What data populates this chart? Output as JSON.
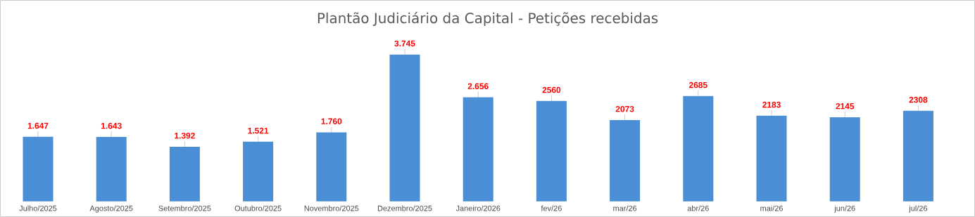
{
  "chart_data": {
    "type": "bar",
    "title": "Plantão Judiciário da Capital - Petições recebidas",
    "categories": [
      "Julho/2025",
      "Agosto/2025",
      "Setembro/2025",
      "Outubro/2025",
      "Novembro/2025",
      "Dezembro/2025",
      "Janeiro/2026",
      "fev/26",
      "mar/26",
      "abr/26",
      "mai/26",
      "jun/26",
      "jul/26"
    ],
    "values": [
      1647,
      1643,
      1392,
      1521,
      1760,
      3745,
      2656,
      2560,
      2073,
      2685,
      2183,
      2145,
      2308
    ],
    "value_labels": [
      "1.647",
      "1.643",
      "1.392",
      "1.521",
      "1.760",
      "3.745",
      "2.656",
      "2560",
      "2073",
      "2685",
      "2183",
      "2145",
      "2308"
    ],
    "color": "#4a8fd6"
  }
}
